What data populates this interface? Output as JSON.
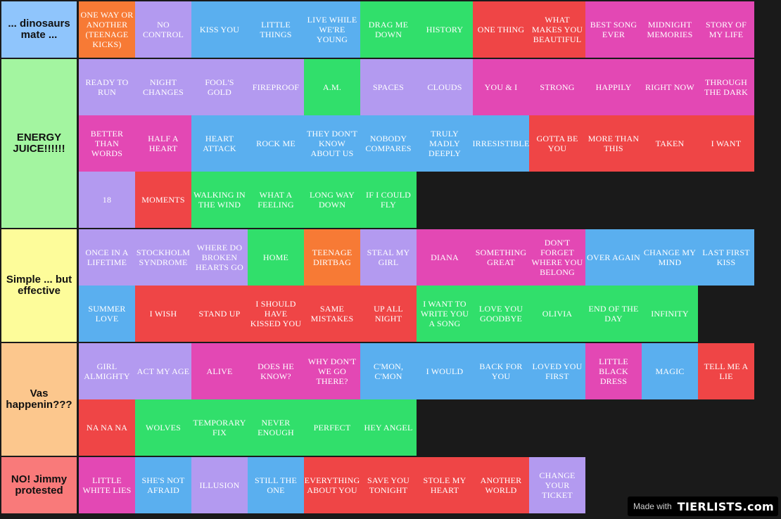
{
  "colors": {
    "orange": "#f77a35",
    "purple": "#b39af0",
    "blue": "#5aafef",
    "green": "#31df6b",
    "red": "#ef4546",
    "pink": "#e348b4",
    "background": "#1a1a1a"
  },
  "tiers": [
    {
      "label": "... dinosaurs mate ...",
      "color": "#8fc5fc",
      "items": [
        {
          "text": "One Way or Another (Teenage Kicks)",
          "color": "orange"
        },
        {
          "text": "No Control",
          "color": "purple"
        },
        {
          "text": "Kiss You",
          "color": "blue"
        },
        {
          "text": "Little Things",
          "color": "blue"
        },
        {
          "text": "Live While We're Young",
          "color": "blue"
        },
        {
          "text": "Drag Me Down",
          "color": "green"
        },
        {
          "text": "History",
          "color": "green"
        },
        {
          "text": "One Thing",
          "color": "red"
        },
        {
          "text": "What Makes You Beautiful",
          "color": "red"
        },
        {
          "text": "Best Song Ever",
          "color": "pink"
        },
        {
          "text": "Midnight Memories",
          "color": "pink"
        },
        {
          "text": "Story of My Life",
          "color": "pink"
        }
      ]
    },
    {
      "label": "ENERGY JUICE!!!!!!",
      "color": "#a3f5a0",
      "items": [
        {
          "text": "Ready to Run",
          "color": "purple"
        },
        {
          "text": "Night Changes",
          "color": "purple"
        },
        {
          "text": "Fool's Gold",
          "color": "purple"
        },
        {
          "text": "Fireproof",
          "color": "purple"
        },
        {
          "text": "A.M.",
          "color": "green"
        },
        {
          "text": "Spaces",
          "color": "purple"
        },
        {
          "text": "Clouds",
          "color": "purple"
        },
        {
          "text": "You & I",
          "color": "pink"
        },
        {
          "text": "Strong",
          "color": "pink"
        },
        {
          "text": "Happily",
          "color": "pink"
        },
        {
          "text": "Right Now",
          "color": "pink"
        },
        {
          "text": "Through the Dark",
          "color": "pink"
        },
        {
          "text": "Better Than Words",
          "color": "pink"
        },
        {
          "text": "Half a Heart",
          "color": "pink"
        },
        {
          "text": "Heart Attack",
          "color": "blue"
        },
        {
          "text": "Rock Me",
          "color": "blue"
        },
        {
          "text": "They Don't Know About Us",
          "color": "blue"
        },
        {
          "text": "Nobody Compares",
          "color": "blue"
        },
        {
          "text": "Truly Madly Deeply",
          "color": "blue"
        },
        {
          "text": "Irresistible",
          "color": "blue"
        },
        {
          "text": "Gotta Be You",
          "color": "red"
        },
        {
          "text": "More Than This",
          "color": "red"
        },
        {
          "text": "Taken",
          "color": "red"
        },
        {
          "text": "I Want",
          "color": "red"
        },
        {
          "text": "18",
          "color": "purple"
        },
        {
          "text": "Moments",
          "color": "red"
        },
        {
          "text": "Walking in the Wind",
          "color": "green"
        },
        {
          "text": "What a Feeling",
          "color": "green"
        },
        {
          "text": "Long Way Down",
          "color": "green"
        },
        {
          "text": "If I Could Fly",
          "color": "green"
        }
      ]
    },
    {
      "label": "Simple ... but effective",
      "color": "#fdfc9a",
      "items": [
        {
          "text": "Once in a Lifetime",
          "color": "purple"
        },
        {
          "text": "Stockholm Syndrome",
          "color": "purple"
        },
        {
          "text": "Where Do Broken Hearts Go",
          "color": "purple"
        },
        {
          "text": "Home",
          "color": "green"
        },
        {
          "text": "Teenage Dirtbag",
          "color": "orange"
        },
        {
          "text": "Steal My Girl",
          "color": "purple"
        },
        {
          "text": "Diana",
          "color": "pink"
        },
        {
          "text": "Something Great",
          "color": "pink"
        },
        {
          "text": "Don't Forget Where You Belong",
          "color": "pink"
        },
        {
          "text": "Over Again",
          "color": "blue"
        },
        {
          "text": "Change My Mind",
          "color": "blue"
        },
        {
          "text": "Last First Kiss",
          "color": "blue"
        },
        {
          "text": "Summer Love",
          "color": "blue"
        },
        {
          "text": "I Wish",
          "color": "red"
        },
        {
          "text": "Stand Up",
          "color": "red"
        },
        {
          "text": "I Should Have Kissed You",
          "color": "red"
        },
        {
          "text": "Same Mistakes",
          "color": "red"
        },
        {
          "text": "Up All Night",
          "color": "red"
        },
        {
          "text": "I Want to Write You a Song",
          "color": "green"
        },
        {
          "text": "Love You Goodbye",
          "color": "green"
        },
        {
          "text": "Olivia",
          "color": "green"
        },
        {
          "text": "End of the Day",
          "color": "green"
        },
        {
          "text": "Infinity",
          "color": "green"
        }
      ]
    },
    {
      "label": "Vas happenin???",
      "color": "#fcc78d",
      "items": [
        {
          "text": "Girl Almighty",
          "color": "purple"
        },
        {
          "text": "Act My Age",
          "color": "purple"
        },
        {
          "text": "Alive",
          "color": "pink"
        },
        {
          "text": "Does He Know?",
          "color": "pink"
        },
        {
          "text": "Why Don't We Go There?",
          "color": "pink"
        },
        {
          "text": "C'mon, C'mon",
          "color": "blue"
        },
        {
          "text": "I Would",
          "color": "blue"
        },
        {
          "text": "Back for You",
          "color": "blue"
        },
        {
          "text": "Loved You First",
          "color": "blue"
        },
        {
          "text": "Little Black Dress",
          "color": "pink"
        },
        {
          "text": "Magic",
          "color": "blue"
        },
        {
          "text": "Tell Me a Lie",
          "color": "red"
        },
        {
          "text": "Na Na Na",
          "color": "red"
        },
        {
          "text": "Wolves",
          "color": "green"
        },
        {
          "text": "Temporary Fix",
          "color": "green"
        },
        {
          "text": "Never Enough",
          "color": "green"
        },
        {
          "text": "Perfect",
          "color": "green"
        },
        {
          "text": "Hey Angel",
          "color": "green"
        }
      ]
    },
    {
      "label": "NO! Jimmy protested",
      "color": "#f97a7a",
      "items": [
        {
          "text": "Little White Lies",
          "color": "pink"
        },
        {
          "text": "She's Not Afraid",
          "color": "blue"
        },
        {
          "text": "Illusion",
          "color": "purple"
        },
        {
          "text": "Still the One",
          "color": "blue"
        },
        {
          "text": "Everything About You",
          "color": "red"
        },
        {
          "text": "Save You Tonight",
          "color": "red"
        },
        {
          "text": "Stole My Heart",
          "color": "red"
        },
        {
          "text": "Another World",
          "color": "red"
        },
        {
          "text": "Change Your Ticket",
          "color": "purple"
        }
      ]
    }
  ],
  "watermark": {
    "made_with": "Made with",
    "logo": "TIERLISTS.com"
  }
}
